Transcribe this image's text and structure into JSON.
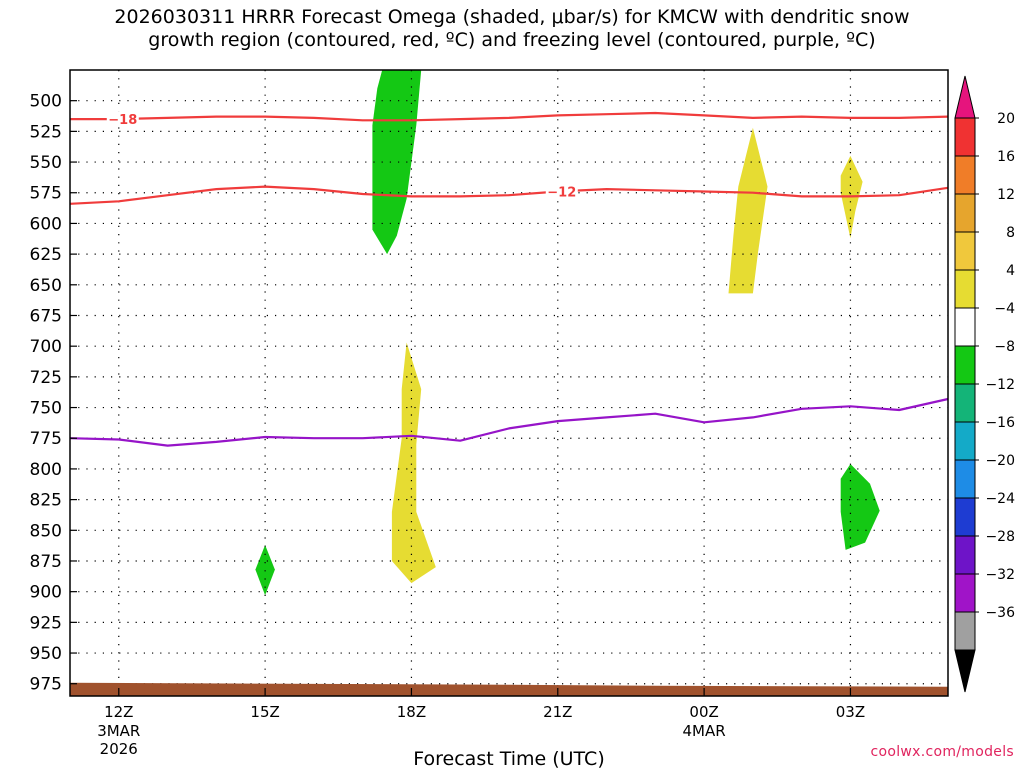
{
  "title_line1": "2026030311 HRRR Forecast Omega (shaded, μbar/s) for KMCW with dendritic snow",
  "title_line2": "growth region (contoured, red, ºC) and freezing level (contoured, purple, ºC)",
  "credit": "coolwx.com/models",
  "chart_data": {
    "type": "contour",
    "title": "2026030311 HRRR Forecast Omega (shaded, μbar/s) for KMCW with dendritic snow growth region (contoured, red, ºC) and freezing level (contoured, purple, ºC)",
    "xlabel": "Forecast Time (UTC)",
    "ylabel": "",
    "x_range_hours": [
      0,
      18
    ],
    "y_range_hpa": [
      475,
      985
    ],
    "y_ticks": [
      500,
      525,
      550,
      575,
      600,
      625,
      650,
      675,
      700,
      725,
      750,
      775,
      800,
      825,
      850,
      875,
      900,
      925,
      950,
      975
    ],
    "x_ticks": [
      {
        "hour": 1,
        "label": "12Z",
        "sub1": "3MAR",
        "sub2": "2026"
      },
      {
        "hour": 4,
        "label": "15Z",
        "sub1": "",
        "sub2": ""
      },
      {
        "hour": 7,
        "label": "18Z",
        "sub1": "",
        "sub2": ""
      },
      {
        "hour": 10,
        "label": "21Z",
        "sub1": "",
        "sub2": ""
      },
      {
        "hour": 13,
        "label": "00Z",
        "sub1": "4MAR",
        "sub2": ""
      },
      {
        "hour": 16,
        "label": "03Z",
        "sub1": "",
        "sub2": ""
      }
    ],
    "colorbar": {
      "labels": [
        "20",
        "16",
        "12",
        "8",
        "4",
        "−4",
        "−8",
        "−12",
        "−16",
        "−20",
        "−24",
        "−28",
        "−32",
        "−36"
      ],
      "colors": [
        "#f03232",
        "#f07d28",
        "#e6a52d",
        "#f0c83c",
        "#e6dc32",
        "#ffffff",
        "#14c814",
        "#14b478",
        "#14aac8",
        "#1e8ce6",
        "#1e3cd2",
        "#6e14c8",
        "#a014c8",
        "#a0a0a0"
      ],
      "top_arrow_color": "#e6147d",
      "bottom_arrow_color": "#000000"
    },
    "contours": [
      {
        "name": "-18C isotherm",
        "label": "−18",
        "color": "#f03c3c",
        "points": [
          [
            0,
            515
          ],
          [
            1,
            515
          ],
          [
            2,
            514
          ],
          [
            3,
            513
          ],
          [
            4,
            513
          ],
          [
            5,
            514
          ],
          [
            6,
            516
          ],
          [
            7,
            516
          ],
          [
            8,
            515
          ],
          [
            9,
            514
          ],
          [
            10,
            512
          ],
          [
            11,
            511
          ],
          [
            12,
            510
          ],
          [
            13,
            512
          ],
          [
            14,
            514
          ],
          [
            15,
            513
          ],
          [
            16,
            514
          ],
          [
            17,
            514
          ],
          [
            18,
            513
          ]
        ]
      },
      {
        "name": "-12C isotherm",
        "label": "−12",
        "color": "#f03c3c",
        "points": [
          [
            0,
            584
          ],
          [
            1,
            582
          ],
          [
            2,
            577
          ],
          [
            3,
            572
          ],
          [
            4,
            570
          ],
          [
            5,
            572
          ],
          [
            6,
            576
          ],
          [
            7,
            578
          ],
          [
            8,
            578
          ],
          [
            9,
            577
          ],
          [
            10,
            574
          ],
          [
            11,
            572
          ],
          [
            12,
            573
          ],
          [
            13,
            574
          ],
          [
            14,
            575
          ],
          [
            15,
            578
          ],
          [
            16,
            578
          ],
          [
            17,
            577
          ],
          [
            18,
            571
          ]
        ]
      },
      {
        "name": "0C freezing level",
        "label": "",
        "color": "#9614c8",
        "points": [
          [
            0,
            775
          ],
          [
            1,
            776
          ],
          [
            2,
            781
          ],
          [
            3,
            778
          ],
          [
            4,
            774
          ],
          [
            5,
            775
          ],
          [
            6,
            775
          ],
          [
            7,
            773
          ],
          [
            8,
            777
          ],
          [
            9,
            767
          ],
          [
            10,
            761
          ],
          [
            11,
            758
          ],
          [
            12,
            755
          ],
          [
            13,
            762
          ],
          [
            14,
            758
          ],
          [
            15,
            751
          ],
          [
            16,
            749
          ],
          [
            17,
            752
          ],
          [
            18,
            743
          ]
        ]
      }
    ],
    "shaded_regions": [
      {
        "name": "upward-motion-18Z-upper",
        "range": "-8 to -4",
        "color": "#14c814",
        "outline": [
          [
            6.4,
            475
          ],
          [
            7.2,
            475
          ],
          [
            7.1,
            520
          ],
          [
            6.9,
            580
          ],
          [
            6.7,
            610
          ],
          [
            6.5,
            625
          ],
          [
            6.2,
            605
          ],
          [
            6.2,
            520
          ],
          [
            6.3,
            490
          ]
        ]
      },
      {
        "name": "upward-motion-15Z",
        "range": "-8 to -4",
        "color": "#14c814",
        "outline": [
          [
            4.0,
            862
          ],
          [
            4.2,
            882
          ],
          [
            4.0,
            903
          ],
          [
            3.8,
            882
          ]
        ]
      },
      {
        "name": "upward-motion-03Z",
        "range": "-8 to -4",
        "color": "#14c814",
        "outline": [
          [
            16.0,
            796
          ],
          [
            16.4,
            812
          ],
          [
            16.6,
            834
          ],
          [
            16.3,
            860
          ],
          [
            15.9,
            866
          ],
          [
            15.8,
            835
          ],
          [
            15.8,
            808
          ]
        ]
      },
      {
        "name": "downward-motion-18Z-lower",
        "range": "4 to 8",
        "color": "#e6dc32",
        "outline": [
          [
            6.9,
            697
          ],
          [
            7.2,
            735
          ],
          [
            7.1,
            780
          ],
          [
            7.1,
            835
          ],
          [
            7.5,
            880
          ],
          [
            7.0,
            893
          ],
          [
            6.6,
            875
          ],
          [
            6.6,
            835
          ],
          [
            6.8,
            775
          ],
          [
            6.8,
            735
          ]
        ]
      },
      {
        "name": "downward-motion-01Z",
        "range": "4 to 8",
        "color": "#e6dc32",
        "outline": [
          [
            14.0,
            522
          ],
          [
            14.3,
            570
          ],
          [
            14.1,
            625
          ],
          [
            14.0,
            657
          ],
          [
            13.5,
            657
          ],
          [
            13.6,
            610
          ],
          [
            13.7,
            570
          ]
        ]
      },
      {
        "name": "downward-motion-03Z-upper",
        "range": "4 to 8",
        "color": "#e6dc32",
        "outline": [
          [
            16.0,
            545
          ],
          [
            16.25,
            566
          ],
          [
            16.1,
            590
          ],
          [
            16.0,
            612
          ],
          [
            15.8,
            575
          ],
          [
            15.8,
            561
          ]
        ]
      }
    ],
    "terrain": {
      "color": "#a0522d",
      "top_hpa": 975
    }
  }
}
